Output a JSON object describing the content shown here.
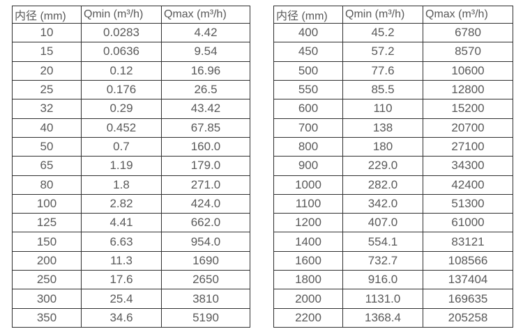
{
  "theme": {
    "background": "#ffffff",
    "border_color": "#2e2e2e",
    "text_color": "#595959"
  },
  "tables": [
    {
      "name": "flow-spec-table-small-diameters",
      "columns": [
        "内径 (mm)",
        "Qmin (m³/h)",
        "Qmax (m³/h)"
      ],
      "rows": [
        [
          "10",
          "0.0283",
          "4.42"
        ],
        [
          "15",
          "0.0636",
          "9.54"
        ],
        [
          "20",
          "0.12",
          "16.96"
        ],
        [
          "25",
          "0.176",
          "26.5"
        ],
        [
          "32",
          "0.29",
          "43.42"
        ],
        [
          "40",
          "0.452",
          "67.85"
        ],
        [
          "50",
          "0.7",
          "160.0"
        ],
        [
          "65",
          "1.19",
          "179.0"
        ],
        [
          "80",
          "1.8",
          "271.0"
        ],
        [
          "100",
          "2.82",
          "424.0"
        ],
        [
          "125",
          "4.41",
          "662.0"
        ],
        [
          "150",
          "6.63",
          "954.0"
        ],
        [
          "200",
          "11.3",
          "1690"
        ],
        [
          "250",
          "17.6",
          "2650"
        ],
        [
          "300",
          "25.4",
          "3810"
        ],
        [
          "350",
          "34.6",
          "5190"
        ]
      ]
    },
    {
      "name": "flow-spec-table-large-diameters",
      "columns": [
        "内径 (mm)",
        "Qmin (m³/h)",
        "Qmax (m³/h)"
      ],
      "rows": [
        [
          "400",
          "45.2",
          "6780"
        ],
        [
          "450",
          "57.2",
          "8570"
        ],
        [
          "500",
          "77.6",
          "10600"
        ],
        [
          "550",
          "85.5",
          "12800"
        ],
        [
          "600",
          "110",
          "15200"
        ],
        [
          "700",
          "138",
          "20700"
        ],
        [
          "800",
          "180",
          "27100"
        ],
        [
          "900",
          "229.0",
          "34300"
        ],
        [
          "1000",
          "282.0",
          "42400"
        ],
        [
          "1100",
          "342.0",
          "51300"
        ],
        [
          "1200",
          "407.0",
          "61000"
        ],
        [
          "1400",
          "554.1",
          "83121"
        ],
        [
          "1600",
          "732.7",
          "108566"
        ],
        [
          "1800",
          "916.0",
          "137404"
        ],
        [
          "2000",
          "1131.0",
          "169635"
        ],
        [
          "2200",
          "1368.4",
          "205258"
        ]
      ]
    }
  ]
}
